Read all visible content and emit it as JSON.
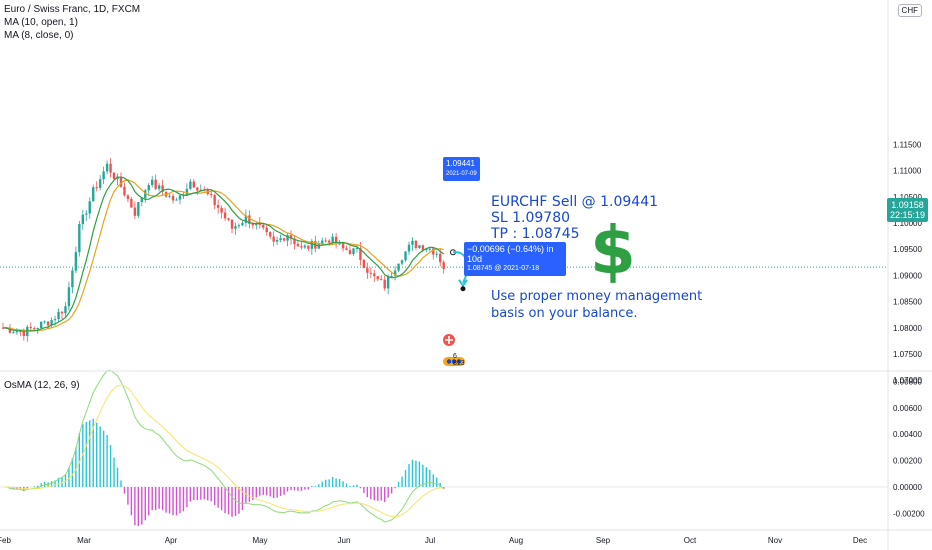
{
  "legend": {
    "symbol": "Euro / Swiss Franc, 1D, FXCM",
    "ma1": "MA (10, open, 1)",
    "ma2": "MA (8, close, 0)",
    "osc": "OsMA (12, 26, 9)"
  },
  "currency_badge": "CHF",
  "last_price": {
    "value": "1.09158",
    "countdown": "22:15:19"
  },
  "annotations": {
    "entry_note_price": "1.09441",
    "entry_note_date": "2021-07-09",
    "measure_line1": "−0.00696 (−0.64%) in 10d",
    "measure_line2": "1.08745 @ 2021-07-18",
    "trade_line1": "EURCHF Sell @ 1.09441",
    "trade_line2": "SL  1.09780",
    "trade_line3": "TP : 1.08745",
    "dollar": "$",
    "advice_line1": "Use proper money management",
    "advice_line2": "basis on your balance.",
    "badge_count": "6 813"
  },
  "colors": {
    "up": "#26a69a",
    "down": "#ef5350",
    "ma_fast": "#e8a221",
    "ma_slow": "#2ea043",
    "osc_fast": "#90d97a",
    "osc_slow": "#f5e66a",
    "osc_pos": "#26c6da",
    "osc_neg": "#d94fd6",
    "accent": "#2962ff",
    "text_blue": "#1848cc"
  },
  "chart_data": [
    {
      "type": "candlestick",
      "title": "Euro / Swiss Franc, 1D, FXCM",
      "y_axis_ticks": [
        "1.11500",
        "1.11000",
        "1.10500",
        "1.10000",
        "1.09500",
        "1.09000",
        "1.08500",
        "1.08000",
        "1.07500",
        "1.07000"
      ],
      "x_axis_ticks": [
        "Feb",
        "Mar",
        "Apr",
        "May",
        "Jun",
        "Jul",
        "Aug",
        "Sep",
        "Oct",
        "Nov",
        "Dec"
      ],
      "ylim": [
        1.0695,
        1.1175
      ],
      "last_value": 1.09158,
      "grid": false,
      "series": [
        {
          "name": "MA (10, open, 1)",
          "kind": "line"
        },
        {
          "name": "MA (8, close, 0)",
          "kind": "line"
        }
      ],
      "checkpoints": [
        {
          "month": "Feb",
          "close": 1.081
        },
        {
          "month": "Mar",
          "close": 1.108
        },
        {
          "month": "Apr",
          "close": 1.102
        },
        {
          "month": "May",
          "close": 1.099
        },
        {
          "month": "Jun",
          "close": 1.094
        },
        {
          "month": "Jul",
          "close": 1.0916
        }
      ],
      "trade": {
        "entry": 1.09441,
        "entry_date": "2021-07-09",
        "target": 1.08745,
        "target_date": "2021-07-18",
        "change": -0.00696,
        "change_pct": -0.64,
        "bars": 10
      }
    },
    {
      "type": "histogram",
      "title": "OsMA (12, 26, 9)",
      "y_axis_ticks": [
        "0.00800",
        "0.00600",
        "0.00400",
        "0.00200",
        "0.00000",
        "-0.00200"
      ],
      "ylim": [
        -0.0027,
        0.0084
      ],
      "series": [
        {
          "name": "OsMA (12, 26, 9)",
          "kind": "histogram"
        }
      ]
    }
  ]
}
